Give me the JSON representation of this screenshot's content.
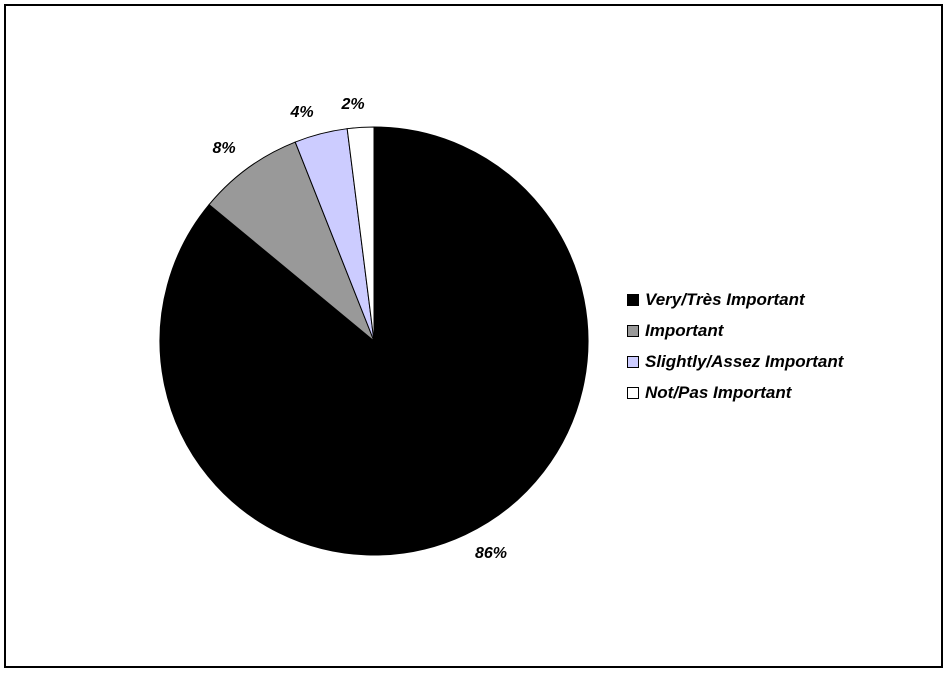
{
  "chart_data": {
    "type": "pie",
    "slices": [
      {
        "label": "Very/Très Important",
        "value": 86,
        "display": "86%",
        "color": "#000000"
      },
      {
        "label": "Important",
        "value": 8,
        "display": "8%",
        "color": "#999999"
      },
      {
        "label": "Slightly/Assez Important",
        "value": 4,
        "display": "4%",
        "color": "#ccccff"
      },
      {
        "label": "Not/Pas Important",
        "value": 2,
        "display": "2%",
        "color": "#ffffff"
      }
    ],
    "start": "top, clockwise",
    "legend_position": "right"
  }
}
